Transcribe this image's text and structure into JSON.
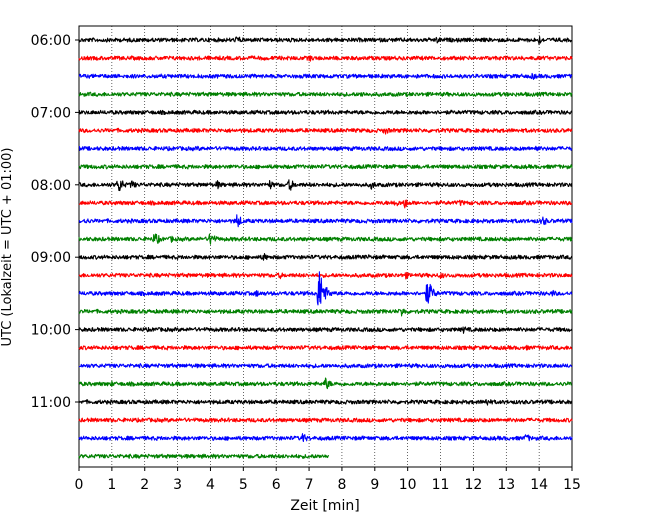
{
  "chart_data": {
    "type": "line",
    "title": "",
    "xlabel": "Zeit  [min]",
    "ylabel": "UTC (Lokalzeit = UTC + 01:00)",
    "xlim": [
      0,
      15
    ],
    "x_ticks": [
      "0",
      "1",
      "2",
      "3",
      "4",
      "5",
      "6",
      "7",
      "8",
      "9",
      "10",
      "11",
      "12",
      "13",
      "14",
      "15"
    ],
    "y_ticks": [
      "06:00",
      "07:00",
      "08:00",
      "09:00",
      "10:00",
      "11:00"
    ],
    "grid": "vertical dotted lines at each minute",
    "trace_interval_minutes": 15,
    "colors": [
      "#000000",
      "#ff0000",
      "#0000ff",
      "#008000"
    ],
    "traces": [
      {
        "start": "06:00",
        "color": "#000000",
        "end_min": 15,
        "events": [
          {
            "t": 4.8,
            "amp": 5
          },
          {
            "t": 10.9,
            "amp": 4
          },
          {
            "t": 14.0,
            "amp": 5
          }
        ]
      },
      {
        "start": "06:15",
        "color": "#ff0000",
        "end_min": 15,
        "events": [
          {
            "t": 7.0,
            "amp": 4
          }
        ]
      },
      {
        "start": "06:30",
        "color": "#0000ff",
        "end_min": 15,
        "events": [
          {
            "t": 13.8,
            "amp": 4
          }
        ]
      },
      {
        "start": "06:45",
        "color": "#008000",
        "end_min": 15,
        "events": [
          {
            "t": 8.6,
            "amp": 4
          }
        ]
      },
      {
        "start": "07:00",
        "color": "#000000",
        "end_min": 15,
        "events": []
      },
      {
        "start": "07:15",
        "color": "#ff0000",
        "end_min": 15,
        "events": [
          {
            "t": 9.3,
            "amp": 5
          }
        ]
      },
      {
        "start": "07:30",
        "color": "#0000ff",
        "end_min": 15,
        "events": [
          {
            "t": 3.6,
            "amp": 3
          },
          {
            "t": 13.9,
            "amp": 4
          }
        ]
      },
      {
        "start": "07:45",
        "color": "#008000",
        "end_min": 15,
        "events": []
      },
      {
        "start": "08:00",
        "color": "#000000",
        "end_min": 15,
        "events": [
          {
            "t": 1.2,
            "amp": 9
          },
          {
            "t": 1.6,
            "amp": 5
          },
          {
            "t": 4.2,
            "amp": 5
          },
          {
            "t": 5.8,
            "amp": 5
          },
          {
            "t": 6.4,
            "amp": 7
          },
          {
            "t": 8.9,
            "amp": 5
          }
        ]
      },
      {
        "start": "08:15",
        "color": "#ff0000",
        "end_min": 15,
        "events": [
          {
            "t": 9.6,
            "amp": 5
          },
          {
            "t": 9.9,
            "amp": 6
          },
          {
            "t": 11.6,
            "amp": 4
          }
        ]
      },
      {
        "start": "08:30",
        "color": "#0000ff",
        "end_min": 15,
        "events": [
          {
            "t": 0.2,
            "amp": 4
          },
          {
            "t": 4.8,
            "amp": 8
          },
          {
            "t": 14.1,
            "amp": 6
          }
        ]
      },
      {
        "start": "08:45",
        "color": "#008000",
        "end_min": 15,
        "events": [
          {
            "t": 2.3,
            "amp": 8
          },
          {
            "t": 2.8,
            "amp": 4
          },
          {
            "t": 4.0,
            "amp": 8
          }
        ]
      },
      {
        "start": "09:00",
        "color": "#000000",
        "end_min": 15,
        "events": [
          {
            "t": 5.6,
            "amp": 5
          },
          {
            "t": 8.8,
            "amp": 3
          }
        ]
      },
      {
        "start": "09:15",
        "color": "#ff0000",
        "end_min": 15,
        "events": [
          {
            "t": 6.1,
            "amp": 4
          },
          {
            "t": 9.9,
            "amp": 5
          },
          {
            "t": 11.0,
            "amp": 4
          }
        ]
      },
      {
        "start": "09:30",
        "color": "#0000ff",
        "end_min": 15,
        "events": [
          {
            "t": 5.4,
            "amp": 4
          },
          {
            "t": 7.3,
            "amp": 26
          },
          {
            "t": 10.6,
            "amp": 15
          },
          {
            "t": 14.4,
            "amp": 4
          }
        ]
      },
      {
        "start": "09:45",
        "color": "#008000",
        "end_min": 15,
        "events": [
          {
            "t": 9.8,
            "amp": 6
          }
        ]
      },
      {
        "start": "10:00",
        "color": "#000000",
        "end_min": 15,
        "events": [
          {
            "t": 2.3,
            "amp": 3
          },
          {
            "t": 11.7,
            "amp": 4
          }
        ]
      },
      {
        "start": "10:15",
        "color": "#ff0000",
        "end_min": 15,
        "events": [
          {
            "t": 6.7,
            "amp": 3
          },
          {
            "t": 13.6,
            "amp": 3
          }
        ]
      },
      {
        "start": "10:30",
        "color": "#0000ff",
        "end_min": 15,
        "events": [
          {
            "t": 11.4,
            "amp": 3
          }
        ]
      },
      {
        "start": "10:45",
        "color": "#008000",
        "end_min": 15,
        "events": [
          {
            "t": 1.0,
            "amp": 3
          },
          {
            "t": 7.5,
            "amp": 7
          },
          {
            "t": 9.0,
            "amp": 3
          }
        ]
      },
      {
        "start": "11:00",
        "color": "#000000",
        "end_min": 15,
        "events": [
          {
            "t": 12.4,
            "amp": 5
          }
        ]
      },
      {
        "start": "11:15",
        "color": "#ff0000",
        "end_min": 15,
        "events": []
      },
      {
        "start": "11:30",
        "color": "#0000ff",
        "end_min": 15,
        "events": [
          {
            "t": 6.8,
            "amp": 6
          },
          {
            "t": 9.5,
            "amp": 3
          },
          {
            "t": 13.6,
            "amp": 5
          }
        ]
      },
      {
        "start": "11:45",
        "color": "#008000",
        "end_min": 7.6,
        "events": []
      }
    ]
  }
}
